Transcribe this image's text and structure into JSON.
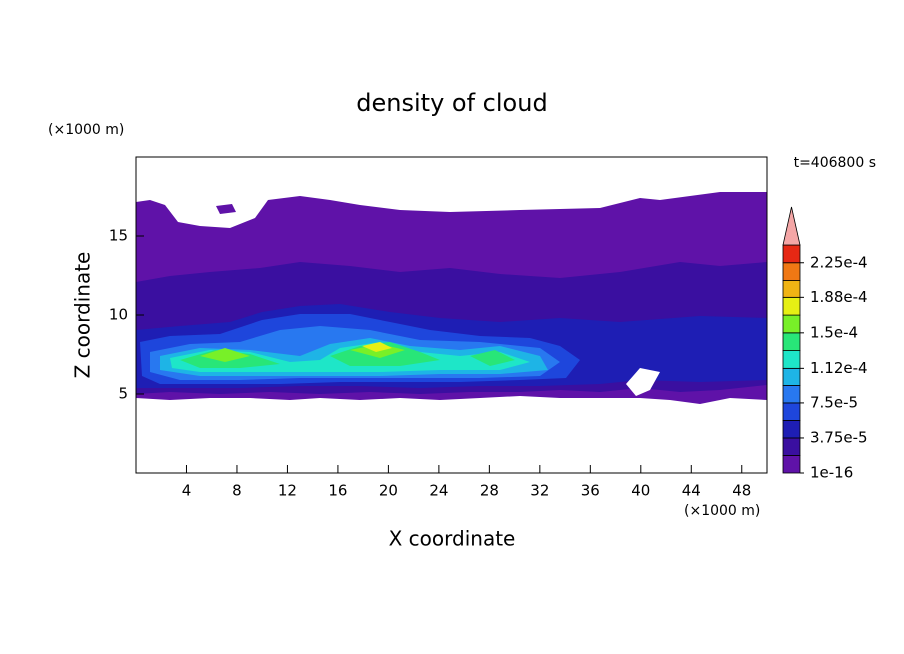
{
  "chart_data": {
    "type": "contour",
    "title": "density of cloud",
    "time_label": "t=406800 s",
    "x_label": "X coordinate",
    "y_label": "Z coordinate",
    "x_unit": "(×1000 m)",
    "y_unit": "(×1000 m)",
    "xlim": [
      0,
      50
    ],
    "xticks": [
      4,
      8,
      12,
      16,
      20,
      24,
      28,
      32,
      36,
      40,
      44,
      48
    ],
    "ylim": [
      0,
      20
    ],
    "yticks": [
      5,
      10,
      15
    ],
    "colorbar": {
      "levels": [
        1e-16,
        1.875e-05,
        3.75e-05,
        5.625e-05,
        7.5e-05,
        9.375e-05,
        0.000112,
        0.000131,
        0.00015,
        0.000169,
        0.000188,
        0.000206,
        0.000225,
        0.000244
      ],
      "colors": [
        "#5f12a8",
        "#3a0fa0",
        "#1e1eb4",
        "#1e46dc",
        "#2878f0",
        "#1eb4e6",
        "#1ee6c8",
        "#28e678",
        "#78f028",
        "#e6f014",
        "#f0b414",
        "#f07814",
        "#e62814"
      ],
      "extend_color": "#f4a6a6",
      "ticks": [
        {
          "value": 1e-16,
          "label": "1e-16"
        },
        {
          "value": 3.75e-05,
          "label": "3.75e-5"
        },
        {
          "value": 7.5e-05,
          "label": "7.5e-5"
        },
        {
          "value": 0.000112,
          "label": "1.12e-4"
        },
        {
          "value": 0.00015,
          "label": "1.5e-4"
        },
        {
          "value": 0.000188,
          "label": "1.88e-4"
        },
        {
          "value": 0.000225,
          "label": "2.25e-4"
        }
      ]
    }
  }
}
